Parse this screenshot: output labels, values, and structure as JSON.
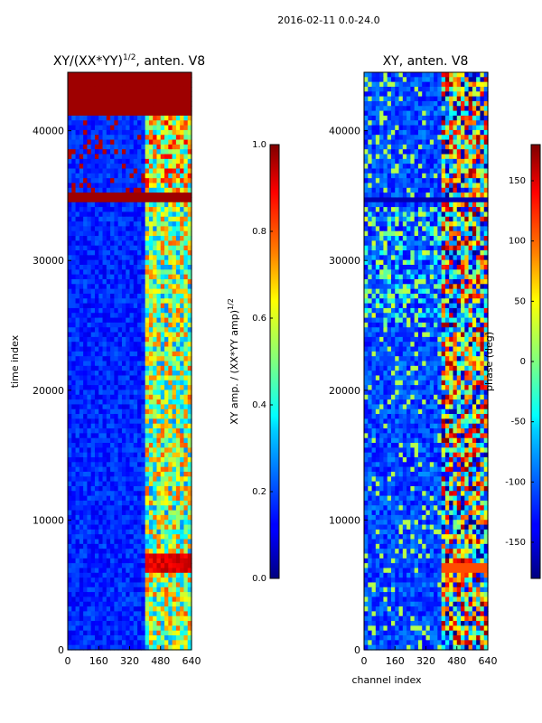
{
  "figure_title": "2016-02-11 0.0-24.0",
  "chart_data": [
    {
      "type": "heatmap",
      "title": "XY/(XX*YY)",
      "title_sup": "1/2",
      "title_suffix": ", anten. V8",
      "xlabel": "",
      "ylabel": "time index",
      "xlim": [
        0,
        640
      ],
      "ylim": [
        0,
        44500
      ],
      "xticks": [
        0,
        160,
        320,
        480,
        640
      ],
      "yticks": [
        0,
        10000,
        20000,
        30000,
        40000
      ],
      "colormap": "jet",
      "colorbar": {
        "label": "XY amp. / (XX*YY amp)",
        "label_sup": "1/2",
        "range": [
          0.0,
          1.0
        ],
        "ticks": [
          "0.0",
          "0.2",
          "0.4",
          "0.6",
          "0.8",
          "1.0"
        ]
      },
      "features": {
        "saturated_bands": [
          [
            34500,
            35200
          ],
          [
            41000,
            44500
          ]
        ],
        "active_channel_range": [
          400,
          640
        ]
      }
    },
    {
      "type": "heatmap",
      "title": "XY, anten. V8",
      "xlabel": "channel index",
      "ylabel": "",
      "xlim": [
        0,
        640
      ],
      "ylim": [
        0,
        44500
      ],
      "xticks": [
        0,
        160,
        320,
        480,
        640
      ],
      "yticks": [
        0,
        10000,
        20000,
        30000,
        40000
      ],
      "colormap": "jet",
      "colorbar": {
        "label": "phase (deg)",
        "range": [
          -180,
          180
        ],
        "ticks": [
          "-150",
          "-100",
          "-50",
          "0",
          "50",
          "100",
          "150"
        ]
      },
      "features": {
        "saturated_bands": [
          [
            34500,
            35000
          ]
        ],
        "active_channel_range": [
          400,
          640
        ]
      }
    }
  ]
}
